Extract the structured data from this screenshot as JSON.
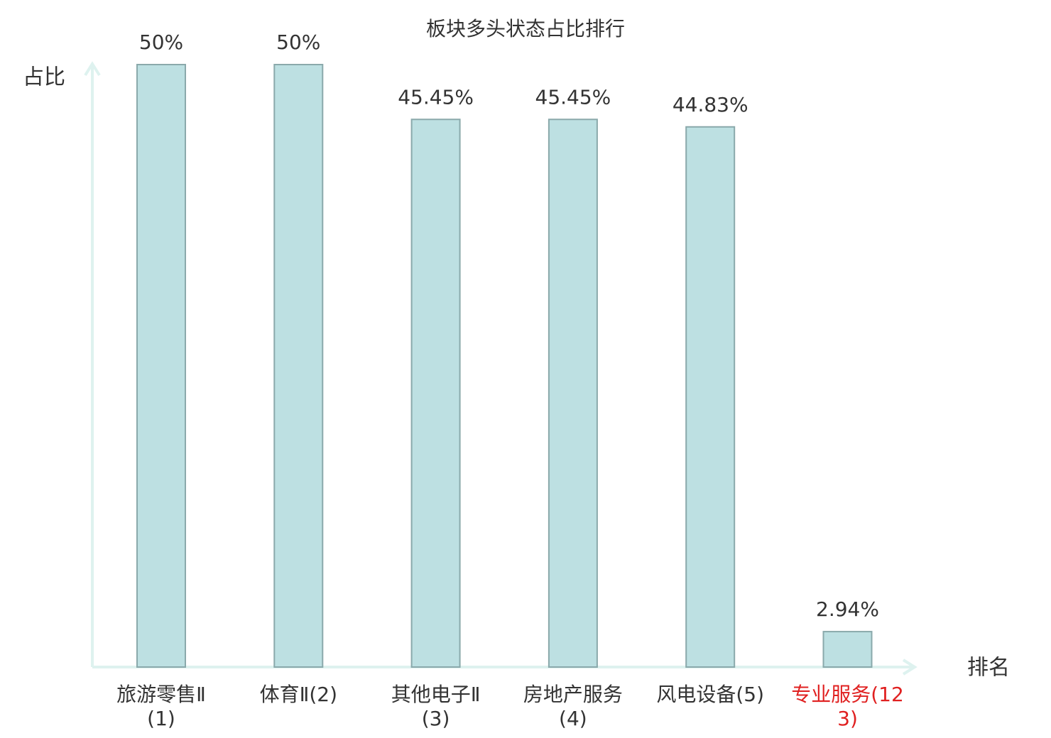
{
  "chart_data": {
    "type": "bar",
    "title": "板块多头状态占比排行",
    "y_label": "占比",
    "x_label": "排名",
    "categories": [
      "旅游零售Ⅱ(1)",
      "体育Ⅱ(2)",
      "其他电子Ⅱ(3)",
      "房地产服务(4)",
      "风电设备(5)",
      "专业服务(123)"
    ],
    "values": [
      50,
      50,
      45.45,
      45.45,
      44.83,
      2.94
    ],
    "value_labels": [
      "50%",
      "50%",
      "45.45%",
      "45.45%",
      "44.83%",
      "2.94%"
    ],
    "color": "#bde0e2",
    "edge_color": "#8aa9ab",
    "category_colors": [
      "#333333",
      "#333333",
      "#333333",
      "#333333",
      "#333333",
      "#e02020"
    ],
    "ylim": [
      0,
      50
    ]
  }
}
